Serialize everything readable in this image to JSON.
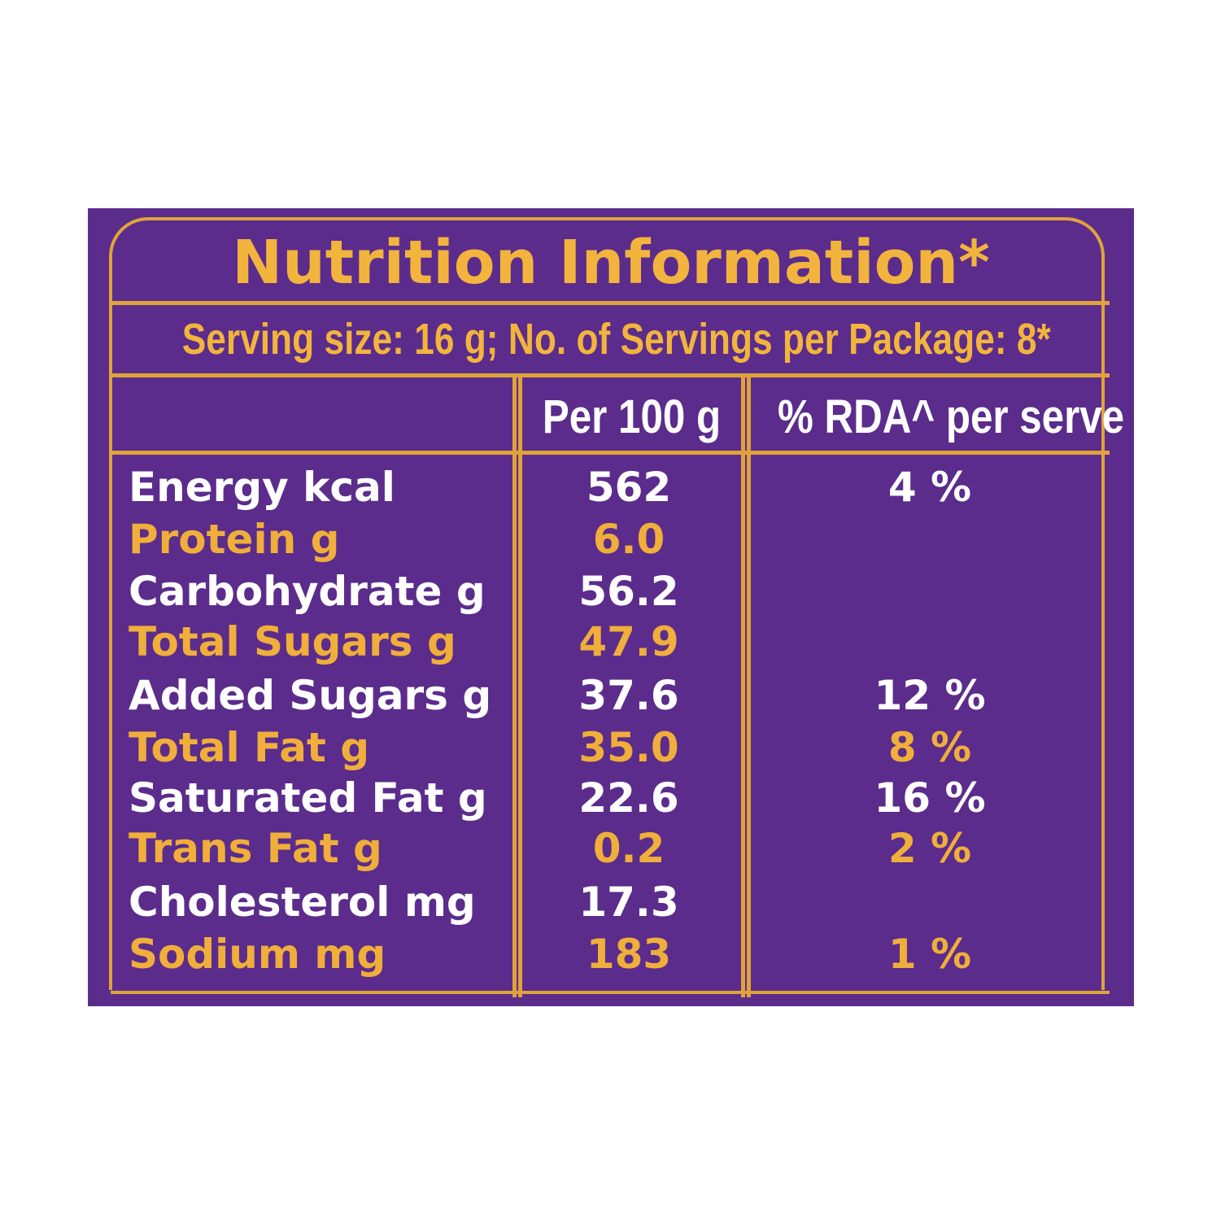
{
  "table": {
    "title": "Nutrition Information*",
    "serving": "Serving size: 16 g; No. of Servings per Package: 8*",
    "headers": {
      "per100": "Per 100 g",
      "rda": "% RDA^ per serve"
    },
    "rows": [
      {
        "name": "Energy kcal",
        "per100": "562",
        "rda": "4 %"
      },
      {
        "name": "Protein g",
        "per100": "6.0",
        "rda": ""
      },
      {
        "name": "Carbohydrate g",
        "per100": "56.2",
        "rda": ""
      },
      {
        "name": "Total Sugars g",
        "per100": "47.9",
        "rda": ""
      },
      {
        "name": "Added Sugars g",
        "per100": "37.6",
        "rda": "12 %"
      },
      {
        "name": "Total Fat g",
        "per100": "35.0",
        "rda": "8 %"
      },
      {
        "name": "Saturated Fat g",
        "per100": "22.6",
        "rda": "16 %"
      },
      {
        "name": "Trans Fat g",
        "per100": "0.2",
        "rda": "2 %"
      },
      {
        "name": "Cholesterol mg",
        "per100": "17.3",
        "rda": ""
      },
      {
        "name": "Sodium mg",
        "per100": "183",
        "rda": "1 %"
      }
    ]
  },
  "colors": {
    "background": "#5b2c8c",
    "gold": "#f0ae3a",
    "white": "#ffffff"
  }
}
